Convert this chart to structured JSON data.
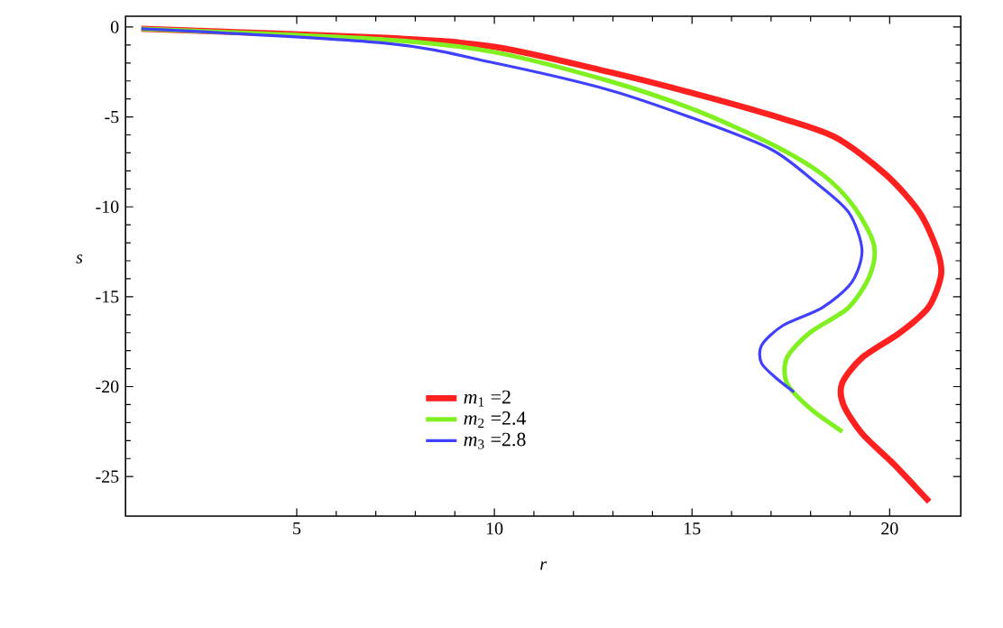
{
  "chart_data": {
    "type": "line",
    "xlabel": "*r*",
    "ylabel": "*s*",
    "xlim": [
      0.67,
      21.8
    ],
    "ylim": [
      -27.2,
      0.6
    ],
    "xticks": [
      5,
      10,
      15,
      20
    ],
    "yticks": [
      0,
      -5,
      -10,
      -15,
      -20,
      -25
    ],
    "grid": false,
    "legend": "bottom",
    "marker": "none",
    "line_style": "solid",
    "series": [
      {
        "name": "*m*$_{1}$ =2",
        "color": "#ff2020",
        "x": [
          1.07,
          7.25,
          10.0,
          12.9,
          15.06,
          17.0,
          18.6,
          19.9,
          20.75,
          21.2,
          21.3,
          20.98,
          20.26,
          19.3,
          18.8,
          18.83,
          19.3,
          20.1,
          21.0
        ],
        "values": [
          -0.1,
          -0.6,
          -1.1,
          -2.5,
          -3.7,
          -4.9,
          -6.1,
          -8.2,
          -10.3,
          -12.4,
          -13.8,
          -15.6,
          -17.0,
          -18.4,
          -19.8,
          -21.0,
          -22.6,
          -24.3,
          -26.4
        ]
      },
      {
        "name": "*m*$_{2}$ =2.4",
        "color": "#80f020",
        "x": [
          1.07,
          7.25,
          10.0,
          12.9,
          15.06,
          17.0,
          18.3,
          19.1,
          19.6,
          19.5,
          18.96,
          17.98,
          17.4,
          17.4,
          17.98,
          18.8
        ],
        "values": [
          -0.1,
          -0.7,
          -1.4,
          -3.0,
          -4.6,
          -6.5,
          -8.2,
          -10.0,
          -12.1,
          -13.8,
          -15.6,
          -17.0,
          -18.4,
          -19.8,
          -21.2,
          -22.5
        ]
      },
      {
        "name": "*m*$_{3}$ =2.8",
        "color": "#4040ff",
        "x": [
          1.07,
          7.25,
          10.0,
          12.9,
          15.06,
          17.0,
          18.1,
          18.96,
          19.3,
          19.04,
          18.3,
          17.3,
          16.76,
          16.76,
          17.17,
          17.58
        ],
        "values": [
          -0.1,
          -0.9,
          -2.0,
          -3.5,
          -5.1,
          -6.8,
          -8.6,
          -10.3,
          -12.4,
          -14.2,
          -15.6,
          -16.6,
          -17.7,
          -18.7,
          -19.6,
          -20.3
        ]
      }
    ]
  }
}
